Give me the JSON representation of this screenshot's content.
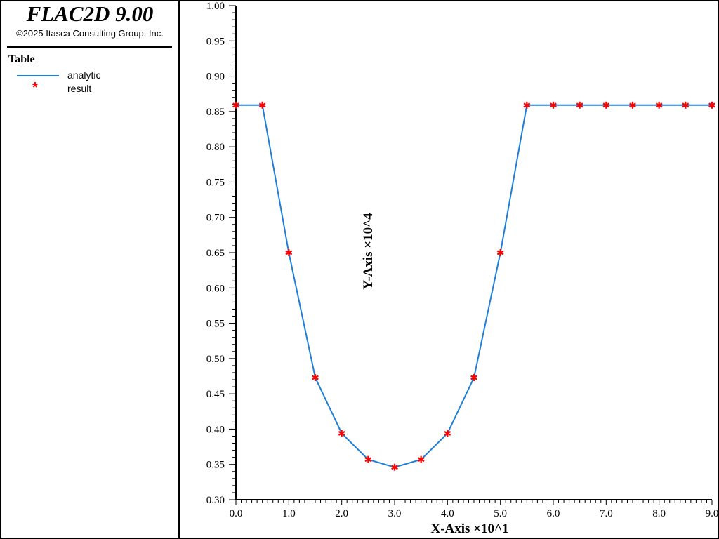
{
  "app": {
    "title": "FLAC2D 9.00",
    "copyright": "©2025 Itasca Consulting Group, Inc."
  },
  "legend": {
    "title": "Table",
    "items": [
      {
        "label": "analytic",
        "symbol": "line",
        "color": "#1f7fd8"
      },
      {
        "label": "result",
        "symbol": "star",
        "color": "#ff0000"
      }
    ]
  },
  "chart_data": {
    "type": "line",
    "xlabel": "X-Axis ×10^1",
    "ylabel": "Y-Axis ×10^4",
    "xlim": [
      0,
      9
    ],
    "ylim": [
      0.3,
      1.0
    ],
    "x_ticks": [
      "0.0",
      "1.0",
      "2.0",
      "3.0",
      "4.0",
      "5.0",
      "6.0",
      "7.0",
      "8.0",
      "9.0"
    ],
    "y_ticks": [
      "0.30",
      "0.35",
      "0.40",
      "0.45",
      "0.50",
      "0.55",
      "0.60",
      "0.65",
      "0.70",
      "0.75",
      "0.80",
      "0.85",
      "0.90",
      "0.95",
      "1.00"
    ],
    "grid": false,
    "series": [
      {
        "name": "analytic",
        "style": "line",
        "color": "#1f7fd8",
        "x": [
          0.0,
          0.5,
          1.0,
          1.5,
          2.0,
          2.5,
          3.0,
          3.5,
          4.0,
          4.5,
          5.0,
          5.5,
          6.0,
          6.5,
          7.0,
          7.5,
          8.0,
          8.5,
          9.0
        ],
        "y": [
          0.859,
          0.859,
          0.65,
          0.473,
          0.394,
          0.357,
          0.346,
          0.357,
          0.394,
          0.473,
          0.65,
          0.859,
          0.859,
          0.859,
          0.859,
          0.859,
          0.859,
          0.859,
          0.859
        ]
      },
      {
        "name": "result",
        "style": "marker",
        "color": "#ff0000",
        "x": [
          0.0,
          0.5,
          1.0,
          1.5,
          2.0,
          2.5,
          3.0,
          3.5,
          4.0,
          4.5,
          5.0,
          5.5,
          6.0,
          6.5,
          7.0,
          7.5,
          8.0,
          8.5,
          9.0
        ],
        "y": [
          0.859,
          0.859,
          0.65,
          0.473,
          0.394,
          0.357,
          0.346,
          0.357,
          0.394,
          0.473,
          0.65,
          0.859,
          0.859,
          0.859,
          0.859,
          0.859,
          0.859,
          0.859,
          0.859
        ]
      }
    ]
  }
}
